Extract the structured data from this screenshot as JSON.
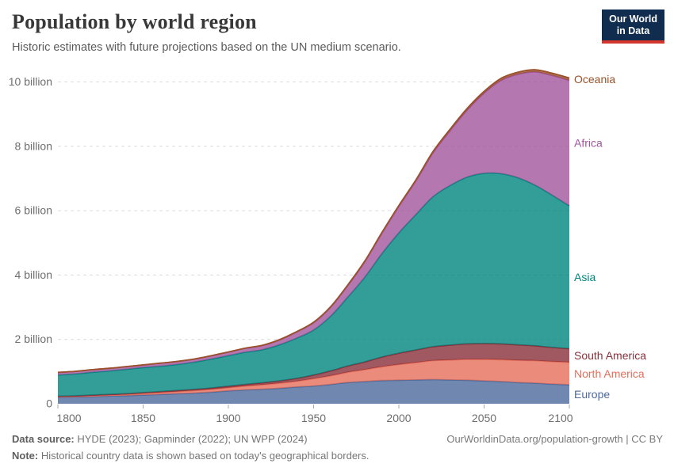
{
  "header": {
    "title": "Population by world region",
    "subtitle": "Historic estimates with future projections based on the UN medium scenario.",
    "logo": {
      "line1": "Our World",
      "line2": "in Data",
      "bg_color": "#102d50",
      "bar_color": "#d4352d"
    }
  },
  "chart_data": {
    "type": "area",
    "stacked": true,
    "title": "Population by world region",
    "subtitle": "Historic estimates with future projections based on the UN medium scenario.",
    "unit": "billion people",
    "xlabel": "",
    "ylabel": "",
    "xlim": [
      1800,
      2100
    ],
    "ylim": [
      0,
      10.6
    ],
    "grid": "horizontal-dashed",
    "legend_position": "right",
    "xticks": [
      1800,
      1850,
      1900,
      1950,
      2000,
      2050,
      2100
    ],
    "yticks": [
      {
        "value": 0,
        "label": "0"
      },
      {
        "value": 2,
        "label": "2 billion"
      },
      {
        "value": 4,
        "label": "4 billion"
      },
      {
        "value": 6,
        "label": "6 billion"
      },
      {
        "value": 8,
        "label": "8 billion"
      },
      {
        "value": 10,
        "label": "10 billion"
      }
    ],
    "x": [
      1800,
      1810,
      1820,
      1830,
      1840,
      1850,
      1860,
      1870,
      1880,
      1890,
      1900,
      1910,
      1920,
      1930,
      1940,
      1950,
      1960,
      1970,
      1980,
      1990,
      2000,
      2010,
      2020,
      2030,
      2040,
      2050,
      2060,
      2070,
      2080,
      2090,
      2100
    ],
    "series": [
      {
        "name": "Europe",
        "color": "#4C6A9C",
        "values": [
          0.2,
          0.21,
          0.22,
          0.24,
          0.25,
          0.27,
          0.29,
          0.31,
          0.33,
          0.36,
          0.4,
          0.43,
          0.45,
          0.48,
          0.52,
          0.55,
          0.6,
          0.66,
          0.69,
          0.72,
          0.73,
          0.74,
          0.75,
          0.74,
          0.73,
          0.71,
          0.69,
          0.66,
          0.64,
          0.61,
          0.59
        ]
      },
      {
        "name": "North America",
        "color": "#E56E5A",
        "values": [
          0.02,
          0.02,
          0.03,
          0.03,
          0.04,
          0.05,
          0.06,
          0.07,
          0.08,
          0.09,
          0.1,
          0.12,
          0.14,
          0.16,
          0.18,
          0.23,
          0.27,
          0.32,
          0.37,
          0.43,
          0.49,
          0.54,
          0.59,
          0.62,
          0.65,
          0.67,
          0.68,
          0.69,
          0.7,
          0.7,
          0.7
        ]
      },
      {
        "name": "South America",
        "color": "#883039",
        "values": [
          0.014,
          0.015,
          0.017,
          0.019,
          0.021,
          0.024,
          0.027,
          0.031,
          0.035,
          0.039,
          0.044,
          0.051,
          0.06,
          0.072,
          0.088,
          0.11,
          0.15,
          0.19,
          0.24,
          0.3,
          0.35,
          0.39,
          0.43,
          0.46,
          0.48,
          0.49,
          0.49,
          0.48,
          0.46,
          0.44,
          0.42
        ]
      },
      {
        "name": "Asia",
        "color": "#00847E",
        "values": [
          0.66,
          0.68,
          0.71,
          0.73,
          0.76,
          0.78,
          0.79,
          0.81,
          0.85,
          0.9,
          0.95,
          1.0,
          1.03,
          1.12,
          1.25,
          1.4,
          1.7,
          2.14,
          2.63,
          3.21,
          3.74,
          4.21,
          4.66,
          4.96,
          5.18,
          5.29,
          5.29,
          5.19,
          4.99,
          4.73,
          4.44
        ]
      },
      {
        "name": "Africa",
        "color": "#A2559C",
        "values": [
          0.08,
          0.08,
          0.08,
          0.08,
          0.08,
          0.08,
          0.09,
          0.09,
          0.09,
          0.1,
          0.11,
          0.12,
          0.13,
          0.15,
          0.19,
          0.23,
          0.28,
          0.36,
          0.48,
          0.63,
          0.82,
          1.04,
          1.36,
          1.7,
          2.08,
          2.49,
          2.9,
          3.22,
          3.52,
          3.72,
          3.9
        ]
      },
      {
        "name": "Oceania",
        "color": "#9A5129",
        "values": [
          0.002,
          0.002,
          0.002,
          0.003,
          0.003,
          0.004,
          0.004,
          0.005,
          0.005,
          0.006,
          0.006,
          0.007,
          0.009,
          0.01,
          0.011,
          0.013,
          0.016,
          0.02,
          0.023,
          0.027,
          0.031,
          0.037,
          0.044,
          0.049,
          0.053,
          0.058,
          0.062,
          0.065,
          0.068,
          0.07,
          0.072
        ]
      }
    ]
  },
  "footer": {
    "source_label": "Data source:",
    "source_text": " HYDE (2023); Gapminder (2022); UN WPP (2024)",
    "link_text": "OurWorldinData.org/population-growth | CC BY",
    "note_label": "Note:",
    "note_text": " Historical country data is shown based on today's geographical borders."
  }
}
